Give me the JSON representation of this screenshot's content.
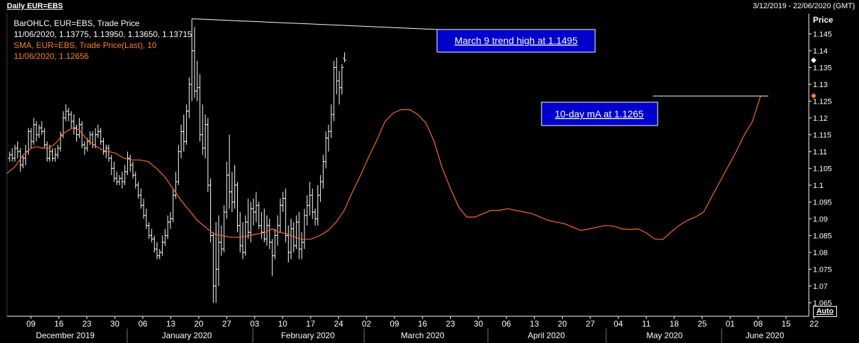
{
  "header": {
    "title": "Daily EUR=EBS",
    "date_range": "3/12/2019 - 22/06/2020 (GMT)"
  },
  "legend": {
    "line1": "BarOHLC, EUR=EBS, Trade Price",
    "line2": "11/06/2020, 1.13775, 1.13950, 1.13650, 1.13715",
    "line3": "SMA, EUR=EBS, Trade Price(Last),  10",
    "line4": "11/06/2020, 1.12656"
  },
  "axis": {
    "price_title": "Price",
    "auto_label": "Auto"
  },
  "colors": {
    "background": "#000000",
    "bars": "#ffffff",
    "sma": "#ff6a2a",
    "callout_bg": "#0000cc",
    "grid": "#ffffff"
  },
  "annotations": [
    {
      "text": "March 9 trend high at 1.1495",
      "points_to": "1.1495"
    },
    {
      "text": "10-day mA at 1.1265",
      "points_to": "1.1265"
    }
  ],
  "chart_data": {
    "type": "ohlc",
    "title": "Daily EUR=EBS",
    "y_ticks": [
      1.065,
      1.07,
      1.075,
      1.08,
      1.085,
      1.09,
      1.095,
      1.1,
      1.105,
      1.11,
      1.115,
      1.12,
      1.125,
      1.13,
      1.135,
      1.14,
      1.145
    ],
    "y_tick_labels": [
      "1.065",
      "1.07",
      "1.075",
      "1.08",
      "1.085",
      "1.09",
      "1.095",
      "1.1",
      "1.105",
      "1.11",
      "1.115",
      "1.12",
      "1.125",
      "1.13",
      "1.135",
      "1.14",
      "1.145"
    ],
    "ylim": [
      1.061,
      1.151
    ],
    "x_tick_labels": [
      "09",
      "16",
      "23",
      "30",
      "06",
      "13",
      "20",
      "27",
      "03",
      "10",
      "17",
      "24",
      "02",
      "09",
      "16",
      "23",
      "30",
      "06",
      "13",
      "20",
      "27",
      "04",
      "11",
      "18",
      "25",
      "01",
      "08",
      "15",
      "22"
    ],
    "month_labels": [
      "December 2019",
      "January 2020",
      "February 2020",
      "March 2020",
      "April 2020",
      "May 2020",
      "June 2020"
    ],
    "last_price": 1.13715,
    "last_sma": 1.12656,
    "bars": [
      [
        1.108,
        1.11,
        1.107,
        1.109
      ],
      [
        1.109,
        1.111,
        1.107,
        1.108
      ],
      [
        1.108,
        1.112,
        1.107,
        1.111
      ],
      [
        1.111,
        1.113,
        1.108,
        1.11
      ],
      [
        1.11,
        1.111,
        1.104,
        1.106
      ],
      [
        1.106,
        1.109,
        1.105,
        1.108
      ],
      [
        1.108,
        1.112,
        1.106,
        1.11
      ],
      [
        1.11,
        1.117,
        1.109,
        1.116
      ],
      [
        1.116,
        1.117,
        1.111,
        1.113
      ],
      [
        1.113,
        1.12,
        1.112,
        1.118
      ],
      [
        1.118,
        1.119,
        1.113,
        1.115
      ],
      [
        1.115,
        1.118,
        1.114,
        1.117
      ],
      [
        1.117,
        1.119,
        1.115,
        1.116
      ],
      [
        1.116,
        1.117,
        1.111,
        1.112
      ],
      [
        1.112,
        1.113,
        1.107,
        1.108
      ],
      [
        1.108,
        1.112,
        1.107,
        1.11
      ],
      [
        1.11,
        1.111,
        1.107,
        1.108
      ],
      [
        1.108,
        1.111,
        1.107,
        1.109
      ],
      [
        1.109,
        1.112,
        1.108,
        1.111
      ],
      [
        1.111,
        1.116,
        1.11,
        1.115
      ],
      [
        1.115,
        1.122,
        1.114,
        1.12
      ],
      [
        1.12,
        1.124,
        1.119,
        1.122
      ],
      [
        1.122,
        1.123,
        1.119,
        1.121
      ],
      [
        1.121,
        1.122,
        1.117,
        1.119
      ],
      [
        1.119,
        1.121,
        1.115,
        1.117
      ],
      [
        1.117,
        1.118,
        1.113,
        1.115
      ],
      [
        1.115,
        1.12,
        1.114,
        1.118
      ],
      [
        1.118,
        1.119,
        1.111,
        1.112
      ],
      [
        1.112,
        1.113,
        1.109,
        1.111
      ],
      [
        1.111,
        1.114,
        1.11,
        1.113
      ],
      [
        1.113,
        1.116,
        1.112,
        1.115
      ],
      [
        1.115,
        1.116,
        1.111,
        1.112
      ],
      [
        1.112,
        1.117,
        1.111,
        1.115
      ],
      [
        1.115,
        1.118,
        1.114,
        1.116
      ],
      [
        1.116,
        1.117,
        1.112,
        1.113
      ],
      [
        1.113,
        1.114,
        1.109,
        1.11
      ],
      [
        1.11,
        1.112,
        1.108,
        1.111
      ],
      [
        1.111,
        1.112,
        1.107,
        1.108
      ],
      [
        1.108,
        1.109,
        1.103,
        1.105
      ],
      [
        1.105,
        1.107,
        1.101,
        1.102
      ],
      [
        1.102,
        1.104,
        1.1,
        1.101
      ],
      [
        1.101,
        1.103,
        1.1,
        1.102
      ],
      [
        1.102,
        1.104,
        1.099,
        1.101
      ],
      [
        1.101,
        1.106,
        1.1,
        1.104
      ],
      [
        1.104,
        1.11,
        1.103,
        1.108
      ],
      [
        1.108,
        1.109,
        1.104,
        1.106
      ],
      [
        1.106,
        1.107,
        1.102,
        1.103
      ],
      [
        1.103,
        1.104,
        1.099,
        1.1
      ],
      [
        1.1,
        1.101,
        1.096,
        1.097
      ],
      [
        1.097,
        1.099,
        1.093,
        1.094
      ],
      [
        1.094,
        1.096,
        1.09,
        1.091
      ],
      [
        1.091,
        1.093,
        1.087,
        1.088
      ],
      [
        1.088,
        1.089,
        1.084,
        1.085
      ],
      [
        1.085,
        1.087,
        1.083,
        1.084
      ],
      [
        1.084,
        1.085,
        1.08,
        1.081
      ],
      [
        1.081,
        1.083,
        1.078,
        1.079
      ],
      [
        1.079,
        1.081,
        1.078,
        1.08
      ],
      [
        1.08,
        1.085,
        1.079,
        1.083
      ],
      [
        1.083,
        1.087,
        1.082,
        1.085
      ],
      [
        1.085,
        1.091,
        1.084,
        1.089
      ],
      [
        1.089,
        1.092,
        1.087,
        1.09
      ],
      [
        1.09,
        1.099,
        1.089,
        1.097
      ],
      [
        1.097,
        1.104,
        1.096,
        1.101
      ],
      [
        1.101,
        1.112,
        1.1,
        1.11
      ],
      [
        1.11,
        1.118,
        1.108,
        1.116
      ],
      [
        1.116,
        1.121,
        1.11,
        1.113
      ],
      [
        1.113,
        1.124,
        1.112,
        1.122
      ],
      [
        1.122,
        1.132,
        1.12,
        1.13
      ],
      [
        1.13,
        1.1495,
        1.125,
        1.14
      ],
      [
        1.14,
        1.147,
        1.126,
        1.128
      ],
      [
        1.128,
        1.137,
        1.125,
        1.129
      ],
      [
        1.129,
        1.133,
        1.113,
        1.115
      ],
      [
        1.115,
        1.124,
        1.109,
        1.111
      ],
      [
        1.111,
        1.121,
        1.108,
        1.118
      ],
      [
        1.118,
        1.12,
        1.098,
        1.1
      ],
      [
        1.1,
        1.102,
        1.083,
        1.085
      ],
      [
        1.085,
        1.086,
        1.065,
        1.07
      ],
      [
        1.07,
        1.089,
        1.065,
        1.075
      ],
      [
        1.075,
        1.091,
        1.07,
        1.083
      ],
      [
        1.083,
        1.088,
        1.079,
        1.081
      ],
      [
        1.081,
        1.094,
        1.08,
        1.092
      ],
      [
        1.092,
        1.107,
        1.09,
        1.103
      ],
      [
        1.103,
        1.115,
        1.093,
        1.098
      ],
      [
        1.098,
        1.104,
        1.092,
        1.095
      ],
      [
        1.095,
        1.106,
        1.093,
        1.1
      ],
      [
        1.1,
        1.101,
        1.086,
        1.088
      ],
      [
        1.088,
        1.092,
        1.08,
        1.082
      ],
      [
        1.082,
        1.089,
        1.078,
        1.08
      ],
      [
        1.08,
        1.091,
        1.079,
        1.089
      ],
      [
        1.089,
        1.096,
        1.084,
        1.086
      ],
      [
        1.086,
        1.095,
        1.083,
        1.093
      ],
      [
        1.093,
        1.096,
        1.088,
        1.092
      ],
      [
        1.092,
        1.098,
        1.089,
        1.094
      ],
      [
        1.094,
        1.095,
        1.087,
        1.088
      ],
      [
        1.088,
        1.092,
        1.084,
        1.086
      ],
      [
        1.086,
        1.093,
        1.083,
        1.084
      ],
      [
        1.084,
        1.091,
        1.082,
        1.088
      ],
      [
        1.088,
        1.09,
        1.081,
        1.083
      ],
      [
        1.083,
        1.084,
        1.073,
        1.079
      ],
      [
        1.079,
        1.087,
        1.078,
        1.085
      ],
      [
        1.085,
        1.091,
        1.082,
        1.088
      ],
      [
        1.088,
        1.096,
        1.086,
        1.094
      ],
      [
        1.094,
        1.098,
        1.092,
        1.096
      ],
      [
        1.096,
        1.099,
        1.083,
        1.085
      ],
      [
        1.085,
        1.088,
        1.077,
        1.08
      ],
      [
        1.08,
        1.09,
        1.078,
        1.087
      ],
      [
        1.087,
        1.089,
        1.08,
        1.082
      ],
      [
        1.082,
        1.091,
        1.081,
        1.089
      ],
      [
        1.089,
        1.092,
        1.078,
        1.081
      ],
      [
        1.081,
        1.086,
        1.078,
        1.083
      ],
      [
        1.083,
        1.093,
        1.081,
        1.091
      ],
      [
        1.091,
        1.097,
        1.088,
        1.094
      ],
      [
        1.094,
        1.101,
        1.091,
        1.097
      ],
      [
        1.097,
        1.099,
        1.09,
        1.092
      ],
      [
        1.092,
        1.093,
        1.088,
        1.09
      ],
      [
        1.09,
        1.1,
        1.088,
        1.097
      ],
      [
        1.097,
        1.103,
        1.095,
        1.101
      ],
      [
        1.101,
        1.109,
        1.099,
        1.107
      ],
      [
        1.107,
        1.116,
        1.105,
        1.114
      ],
      [
        1.114,
        1.118,
        1.11,
        1.116
      ],
      [
        1.116,
        1.124,
        1.114,
        1.121
      ],
      [
        1.121,
        1.137,
        1.119,
        1.135
      ],
      [
        1.135,
        1.138,
        1.127,
        1.131
      ],
      [
        1.131,
        1.134,
        1.124,
        1.129
      ],
      [
        1.129,
        1.136,
        1.127,
        1.135
      ],
      [
        1.13775,
        1.1395,
        1.1365,
        1.13715
      ]
    ],
    "sma": [
      [
        0,
        1.1035
      ],
      [
        6,
        1.1055
      ],
      [
        12,
        1.109
      ],
      [
        18,
        1.111
      ],
      [
        22,
        1.1115
      ],
      [
        26,
        1.111
      ],
      [
        31,
        1.111
      ],
      [
        36,
        1.1125
      ],
      [
        42,
        1.1155
      ],
      [
        48,
        1.117
      ],
      [
        53,
        1.1165
      ],
      [
        58,
        1.114
      ],
      [
        64,
        1.112
      ],
      [
        70,
        1.1105
      ],
      [
        75,
        1.11
      ],
      [
        80,
        1.1095
      ],
      [
        86,
        1.108
      ],
      [
        92,
        1.1075
      ],
      [
        98,
        1.1075
      ],
      [
        104,
        1.107
      ],
      [
        110,
        1.105
      ],
      [
        116,
        1.1025
      ],
      [
        122,
        1.099
      ],
      [
        128,
        1.0955
      ],
      [
        134,
        1.0925
      ],
      [
        140,
        1.0895
      ],
      [
        146,
        1.0875
      ],
      [
        152,
        1.0855
      ],
      [
        158,
        1.085
      ],
      [
        165,
        1.0845
      ],
      [
        172,
        1.0845
      ],
      [
        178,
        1.085
      ],
      [
        184,
        1.0855
      ],
      [
        190,
        1.086
      ],
      [
        195,
        1.087
      ],
      [
        200,
        1.086
      ],
      [
        206,
        1.0855
      ],
      [
        212,
        1.0845
      ],
      [
        218,
        1.0838
      ],
      [
        224,
        1.084
      ],
      [
        230,
        1.085
      ],
      [
        236,
        1.0865
      ],
      [
        242,
        1.089
      ],
      [
        248,
        1.0925
      ],
      [
        254,
        1.098
      ],
      [
        260,
        1.103
      ],
      [
        266,
        1.1085
      ],
      [
        272,
        1.1135
      ],
      [
        278,
        1.119
      ],
      [
        284,
        1.1215
      ],
      [
        290,
        1.1225
      ],
      [
        296,
        1.1225
      ],
      [
        302,
        1.121
      ],
      [
        308,
        1.1185
      ],
      [
        314,
        1.113
      ],
      [
        320,
        1.105
      ],
      [
        326,
        1.099
      ],
      [
        332,
        1.0935
      ],
      [
        338,
        1.0905
      ],
      [
        344,
        1.0905
      ],
      [
        350,
        1.0915
      ],
      [
        356,
        1.0925
      ],
      [
        362,
        1.0925
      ],
      [
        368,
        1.093
      ],
      [
        374,
        1.0925
      ],
      [
        380,
        1.092
      ],
      [
        386,
        1.0915
      ],
      [
        392,
        1.0905
      ],
      [
        398,
        1.0895
      ],
      [
        404,
        1.089
      ],
      [
        410,
        1.0885
      ],
      [
        416,
        1.0875
      ],
      [
        422,
        1.0865
      ],
      [
        428,
        1.087
      ],
      [
        434,
        1.0875
      ],
      [
        440,
        1.088
      ],
      [
        446,
        1.0878
      ],
      [
        452,
        1.087
      ],
      [
        458,
        1.0868
      ],
      [
        464,
        1.087
      ],
      [
        470,
        1.0858
      ],
      [
        476,
        1.084
      ],
      [
        482,
        1.0838
      ],
      [
        488,
        1.086
      ],
      [
        494,
        1.088
      ],
      [
        500,
        1.0895
      ],
      [
        506,
        1.0905
      ],
      [
        512,
        1.092
      ],
      [
        518,
        1.0965
      ],
      [
        524,
        1.101
      ],
      [
        530,
        1.1055
      ],
      [
        536,
        1.11
      ],
      [
        542,
        1.115
      ],
      [
        548,
        1.119
      ],
      [
        554,
        1.12656
      ]
    ]
  }
}
